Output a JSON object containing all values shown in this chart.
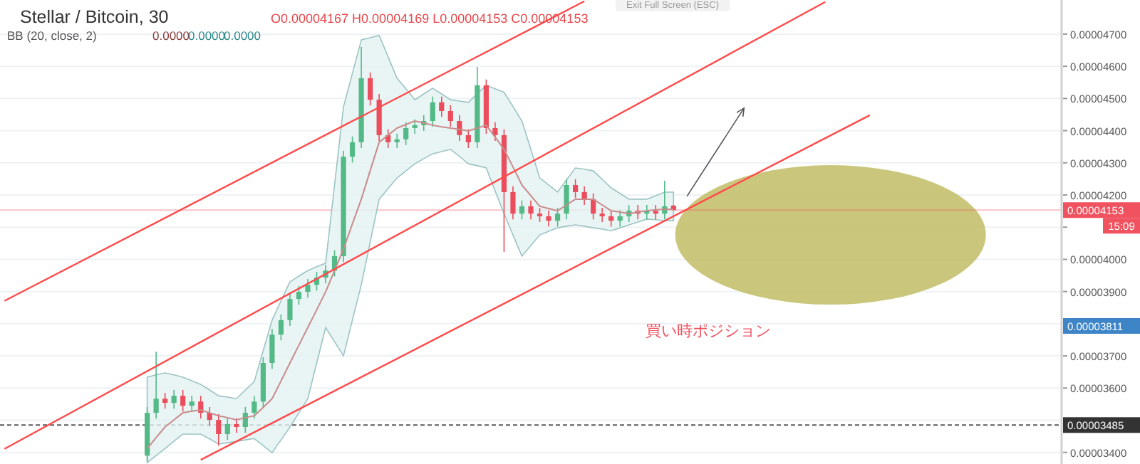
{
  "chart_data": {
    "type": "candlestick",
    "title": "Stellar / Bitcoin, 30",
    "subtitle": "BB (20, close, 2)",
    "categories": [
      null,
      null,
      null,
      null,
      null,
      null,
      null,
      null,
      null,
      null,
      null,
      null,
      null,
      null,
      null,
      null,
      null,
      null,
      null,
      null,
      null,
      null,
      null,
      null,
      null,
      null,
      null,
      null,
      null,
      null,
      null,
      null,
      null,
      null,
      null,
      null,
      null,
      null,
      null,
      null,
      null,
      null,
      null,
      null,
      null,
      null,
      null,
      null,
      null,
      null,
      null,
      null,
      null,
      null,
      null,
      null,
      null,
      null,
      null,
      null,
      null,
      null,
      null,
      null,
      null,
      null,
      null,
      null,
      null,
      null,
      null,
      null,
      null,
      null,
      null,
      null,
      null,
      null,
      null,
      null,
      null,
      null,
      null,
      null,
      null,
      null,
      null,
      null,
      null,
      null,
      null,
      null,
      null,
      null,
      null,
      null,
      null,
      null,
      null,
      null,
      null,
      null,
      null,
      null,
      null,
      null,
      null,
      null,
      null,
      null,
      null,
      null,
      null,
      null,
      null,
      null,
      null,
      null,
      null
    ],
    "ohlc": [
      null,
      null,
      null,
      null,
      null,
      null,
      null,
      null,
      null,
      null,
      null,
      null,
      null,
      null,
      null,
      null,
      [
        3.39e-05,
        3.541e-05,
        3.372e-05,
        3.523e-05
      ],
      [
        3.523e-05,
        3.713e-05,
        3.505e-05,
        3.567e-05
      ],
      [
        3.567e-05,
        3.585e-05,
        3.536e-05,
        3.554e-05
      ],
      [
        3.554e-05,
        3.594e-05,
        3.536e-05,
        3.576e-05
      ],
      [
        3.576e-05,
        3.594e-05,
        3.527e-05,
        3.545e-05
      ],
      [
        3.545e-05,
        3.576e-05,
        3.527e-05,
        3.558e-05
      ],
      [
        3.558e-05,
        3.576e-05,
        3.505e-05,
        3.523e-05
      ],
      [
        3.523e-05,
        3.541e-05,
        3.483e-05,
        3.501e-05
      ],
      [
        3.501e-05,
        3.519e-05,
        3.421e-05,
        3.457e-05
      ],
      [
        3.457e-05,
        3.506e-05,
        3.439e-05,
        3.488e-05
      ],
      [
        3.488e-05,
        3.506e-05,
        3.461e-05,
        3.479e-05
      ],
      [
        3.479e-05,
        3.541e-05,
        3.461e-05,
        3.523e-05
      ],
      [
        3.523e-05,
        3.576e-05,
        3.505e-05,
        3.558e-05
      ],
      [
        3.558e-05,
        3.696e-05,
        3.54e-05,
        3.678e-05
      ],
      [
        3.678e-05,
        3.784e-05,
        3.66e-05,
        3.766e-05
      ],
      [
        3.766e-05,
        3.829e-05,
        3.748e-05,
        3.811e-05
      ],
      [
        3.811e-05,
        3.895e-05,
        3.793e-05,
        3.877e-05
      ],
      [
        3.877e-05,
        3.917e-05,
        3.859e-05,
        3.899e-05
      ],
      [
        3.899e-05,
        3.939e-05,
        3.881e-05,
        3.921e-05
      ],
      [
        3.921e-05,
        3.961e-05,
        3.903e-05,
        3.943e-05
      ],
      [
        3.943e-05,
        3.983e-05,
        3.925e-05,
        3.965e-05
      ],
      [
        3.965e-05,
        4.028e-05,
        3.947e-05,
        4.01e-05
      ],
      [
        4.01e-05,
        4.337e-05,
        3.992e-05,
        4.319e-05
      ],
      [
        4.319e-05,
        4.382e-05,
        4.301e-05,
        4.364e-05
      ],
      [
        4.364e-05,
        4.66e-05,
        4.346e-05,
        4.563e-05
      ],
      [
        4.563e-05,
        4.581e-05,
        4.478e-05,
        4.496e-05
      ],
      [
        4.496e-05,
        4.514e-05,
        4.368e-05,
        4.386e-05
      ],
      [
        4.386e-05,
        4.404e-05,
        4.346e-05,
        4.364e-05
      ],
      [
        4.364e-05,
        4.391e-05,
        4.346e-05,
        4.373e-05
      ],
      [
        4.373e-05,
        4.426e-05,
        4.355e-05,
        4.408e-05
      ],
      [
        4.408e-05,
        4.435e-05,
        4.39e-05,
        4.417e-05
      ],
      [
        4.417e-05,
        4.448e-05,
        4.399e-05,
        4.43e-05
      ],
      [
        4.43e-05,
        4.506e-05,
        4.412e-05,
        4.488e-05
      ],
      [
        4.488e-05,
        4.506e-05,
        4.443e-05,
        4.461e-05
      ],
      [
        4.461e-05,
        4.479e-05,
        4.412e-05,
        4.43e-05
      ],
      [
        4.43e-05,
        4.448e-05,
        4.368e-05,
        4.386e-05
      ],
      [
        4.386e-05,
        4.404e-05,
        4.346e-05,
        4.364e-05
      ],
      [
        4.364e-05,
        4.598e-05,
        4.346e-05,
        4.541e-05
      ],
      [
        4.541e-05,
        4.559e-05,
        4.39e-05,
        4.408e-05
      ],
      [
        4.408e-05,
        4.426e-05,
        4.368e-05,
        4.386e-05
      ],
      [
        4.386e-05,
        4.404e-05,
        4.023e-05,
        4.209e-05
      ],
      [
        4.209e-05,
        4.227e-05,
        4.124e-05,
        4.142e-05
      ],
      [
        4.142e-05,
        4.183e-05,
        4.124e-05,
        4.165e-05
      ],
      [
        4.165e-05,
        4.183e-05,
        4.124e-05,
        4.142e-05
      ],
      [
        4.142e-05,
        4.16e-05,
        4.116e-05,
        4.134e-05
      ],
      [
        4.134e-05,
        4.152e-05,
        4.102e-05,
        4.12e-05
      ],
      [
        4.12e-05,
        4.16e-05,
        4.102e-05,
        4.142e-05
      ],
      [
        4.142e-05,
        4.249e-05,
        4.124e-05,
        4.231e-05
      ],
      [
        4.231e-05,
        4.249e-05,
        4.191e-05,
        4.209e-05
      ],
      [
        4.209e-05,
        4.227e-05,
        4.169e-05,
        4.187e-05
      ],
      [
        4.187e-05,
        4.205e-05,
        4.124e-05,
        4.142e-05
      ],
      [
        4.142e-05,
        4.16e-05,
        4.116e-05,
        4.134e-05
      ],
      [
        4.134e-05,
        4.152e-05,
        4.102e-05,
        4.12e-05
      ],
      [
        4.12e-05,
        4.152e-05,
        4.102e-05,
        4.134e-05
      ],
      [
        4.134e-05,
        4.169e-05,
        4.116e-05,
        4.151e-05
      ],
      [
        4.151e-05,
        4.169e-05,
        4.124e-05,
        4.142e-05
      ],
      [
        4.142e-05,
        4.169e-05,
        4.124e-05,
        4.151e-05
      ],
      [
        4.151e-05,
        4.169e-05,
        4.124e-05,
        4.142e-05
      ],
      [
        4.142e-05,
        4.244e-05,
        4.124e-05,
        4.165e-05
      ],
      [
        4.167e-05,
        4.169e-05,
        4.153e-05,
        4.153e-05
      ],
      null,
      null,
      null,
      null,
      null,
      null,
      null,
      null,
      null,
      null,
      null,
      null,
      null,
      null,
      null,
      null,
      null,
      null,
      null,
      null,
      null,
      null,
      null,
      null,
      null,
      null,
      null,
      null,
      null,
      null,
      null,
      null,
      null,
      null,
      null,
      null,
      null,
      null,
      null,
      null,
      null,
      null,
      null
    ],
    "series": [
      {
        "type": "line",
        "color": "#c98b8b",
        "values": [
          null,
          null,
          null,
          null,
          null,
          null,
          null,
          null,
          null,
          null,
          null,
          null,
          null,
          null,
          null,
          null,
          3.412e-05,
          3.446e-05,
          3.479e-05,
          3.501e-05,
          3.523e-05,
          3.528e-05,
          3.532e-05,
          3.523e-05,
          3.514e-05,
          3.508e-05,
          3.501e-05,
          3.508e-05,
          3.514e-05,
          3.54e-05,
          3.567e-05,
          3.622e-05,
          3.678e-05,
          3.733e-05,
          3.788e-05,
          3.843e-05,
          3.899e-05,
          3.965e-05,
          4.032e-05,
          4.11e-05,
          4.187e-05,
          4.276e-05,
          4.364e-05,
          4.386e-05,
          4.408e-05,
          4.419e-05,
          4.43e-05,
          4.424e-05,
          4.417e-05,
          4.412e-05,
          4.408e-05,
          4.404e-05,
          4.399e-05,
          4.408e-05,
          4.417e-05,
          4.38e-05,
          4.342e-05,
          4.287e-05,
          4.231e-05,
          4.198e-05,
          4.165e-05,
          4.158e-05,
          4.151e-05,
          4.169e-05,
          4.187e-05,
          4.187e-05,
          4.187e-05,
          4.169e-05,
          4.151e-05,
          4.147e-05,
          4.142e-05,
          4.147e-05,
          4.151e-05,
          4.154e-05,
          4.156e-05,
          4.155e-05,
          null,
          null,
          null,
          null,
          null,
          null,
          null,
          null,
          null,
          null,
          null,
          null,
          null,
          null,
          null,
          null,
          null,
          null,
          null,
          null,
          null,
          null,
          null,
          null,
          null,
          null,
          null,
          null,
          null,
          null,
          null,
          null,
          null,
          null,
          null,
          null,
          null,
          null,
          null,
          null,
          null,
          null,
          null
        ],
        "upper": [
          null,
          null,
          null,
          null,
          null,
          null,
          null,
          null,
          null,
          null,
          null,
          null,
          null,
          null,
          null,
          null,
          3.634e-05,
          3.641e-05,
          3.647e-05,
          3.641e-05,
          3.634e-05,
          3.623e-05,
          3.611e-05,
          3.594e-05,
          3.576e-05,
          3.572e-05,
          3.567e-05,
          3.594e-05,
          3.62e-05,
          3.716e-05,
          3.811e-05,
          3.871e-05,
          3.93e-05,
          3.948e-05,
          3.965e-05,
          3.977e-05,
          3.988e-05,
          4.231e-05,
          4.474e-05,
          4.578e-05,
          4.682e-05,
          4.689e-05,
          4.696e-05,
          4.63e-05,
          4.563e-05,
          4.53e-05,
          4.496e-05,
          4.514e-05,
          4.532e-05,
          4.514e-05,
          4.496e-05,
          4.492e-05,
          4.488e-05,
          4.515e-05,
          4.541e-05,
          4.53e-05,
          4.519e-05,
          4.475e-05,
          4.43e-05,
          4.342e-05,
          4.253e-05,
          4.231e-05,
          4.209e-05,
          4.247e-05,
          4.284e-05,
          4.28e-05,
          4.275e-05,
          4.249e-05,
          4.222e-05,
          4.205e-05,
          4.187e-05,
          4.187e-05,
          4.187e-05,
          4.198e-05,
          4.209e-05,
          4.209e-05,
          null,
          null,
          null,
          null,
          null,
          null,
          null,
          null,
          null,
          null,
          null,
          null,
          null,
          null,
          null,
          null,
          null,
          null,
          null,
          null,
          null,
          null,
          null,
          null,
          null,
          null,
          null,
          null,
          null,
          null,
          null,
          null,
          null,
          null,
          null,
          null,
          null,
          null,
          null,
          null,
          null,
          null,
          null
        ],
        "lower": [
          null,
          null,
          null,
          null,
          null,
          null,
          null,
          null,
          null,
          null,
          null,
          null,
          null,
          null,
          null,
          null,
          3.368e-05,
          3.39e-05,
          3.412e-05,
          3.435e-05,
          3.457e-05,
          3.457e-05,
          3.457e-05,
          3.442e-05,
          3.426e-05,
          3.43e-05,
          3.434e-05,
          3.439e-05,
          3.443e-05,
          3.421e-05,
          3.399e-05,
          3.439e-05,
          3.479e-05,
          3.523e-05,
          3.567e-05,
          3.678e-05,
          3.788e-05,
          3.744e-05,
          3.7e-05,
          3.811e-05,
          3.921e-05,
          4.054e-05,
          4.187e-05,
          4.22e-05,
          4.253e-05,
          4.275e-05,
          4.297e-05,
          4.313e-05,
          4.328e-05,
          4.335e-05,
          4.342e-05,
          4.32e-05,
          4.297e-05,
          4.291e-05,
          4.284e-05,
          4.213e-05,
          4.142e-05,
          4.076e-05,
          4.01e-05,
          4.043e-05,
          4.076e-05,
          4.087e-05,
          4.098e-05,
          4.103e-05,
          4.107e-05,
          4.103e-05,
          4.098e-05,
          4.094e-05,
          4.089e-05,
          4.098e-05,
          4.107e-05,
          4.116e-05,
          4.125e-05,
          4.123e-05,
          4.12e-05,
          4.12e-05,
          null,
          null,
          null,
          null,
          null,
          null,
          null,
          null,
          null,
          null,
          null,
          null,
          null,
          null,
          null,
          null,
          null,
          null,
          null,
          null,
          null,
          null,
          null,
          null,
          null,
          null,
          null,
          null,
          null,
          null,
          null,
          null,
          null,
          null,
          null,
          null,
          null,
          null,
          null,
          null,
          null,
          null,
          null
        ]
      },
      {
        "type": "line",
        "color": "#ff4a4a",
        "values": [
          3.871e-05,
          null,
          null,
          null,
          null,
          null,
          null,
          null,
          null,
          null,
          null,
          null,
          null,
          null,
          null,
          null,
          null,
          null,
          null,
          null,
          null,
          null,
          null,
          null,
          null,
          null,
          null,
          null,
          null,
          null,
          null,
          null,
          null,
          null,
          null,
          null,
          null,
          null,
          null,
          null,
          null,
          null,
          null,
          null,
          null,
          null,
          null,
          null,
          null,
          null,
          null,
          null,
          null,
          null,
          null,
          null,
          null,
          null,
          null,
          null,
          null,
          null,
          null,
          null,
          null,
          4.802e-05,
          null,
          null,
          null,
          null,
          null,
          null,
          null,
          null,
          null,
          null,
          null,
          null,
          null,
          null,
          null,
          null,
          null,
          null,
          null,
          null,
          null,
          null,
          null,
          null,
          null,
          null,
          null,
          null,
          null,
          null,
          null,
          null,
          null,
          null,
          null,
          null,
          null,
          null,
          null,
          null,
          null,
          null,
          null,
          null,
          null,
          null,
          null,
          null,
          null,
          null,
          null,
          null,
          null
        ]
      },
      {
        "type": "line",
        "color": "#ff4a4a",
        "values": [
          3.411e-05,
          null,
          null,
          null,
          null,
          null,
          null,
          null,
          null,
          null,
          null,
          null,
          null,
          null,
          null,
          null,
          null,
          null,
          null,
          null,
          null,
          null,
          null,
          null,
          null,
          null,
          null,
          null,
          null,
          null,
          null,
          null,
          null,
          null,
          null,
          null,
          null,
          null,
          null,
          null,
          null,
          null,
          null,
          null,
          null,
          null,
          null,
          null,
          null,
          null,
          null,
          null,
          null,
          null,
          null,
          null,
          null,
          null,
          null,
          null,
          null,
          null,
          null,
          null,
          null,
          null,
          null,
          null,
          null,
          null,
          null,
          null,
          null,
          null,
          null,
          null,
          null,
          null,
          null,
          null,
          null,
          null,
          null,
          null,
          null,
          null,
          null,
          null,
          null,
          null,
          null,
          null,
          4.8e-05,
          null,
          null,
          null,
          null,
          null,
          null,
          null,
          null,
          null,
          null,
          null,
          null,
          null,
          null,
          null,
          null,
          null,
          null,
          null,
          null,
          null,
          null,
          null,
          null,
          null,
          null
        ]
      },
      {
        "type": "line",
        "color": "#ff4a4a",
        "values": [
          null,
          null,
          null,
          null,
          null,
          null,
          null,
          null,
          null,
          null,
          null,
          null,
          null,
          null,
          null,
          null,
          null,
          null,
          null,
          null,
          null,
          null,
          3.377e-05,
          null,
          null,
          null,
          null,
          null,
          null,
          null,
          null,
          null,
          null,
          null,
          null,
          null,
          null,
          null,
          null,
          null,
          null,
          null,
          null,
          null,
          null,
          null,
          null,
          null,
          null,
          null,
          null,
          null,
          null,
          null,
          null,
          null,
          null,
          null,
          null,
          null,
          null,
          null,
          null,
          null,
          null,
          null,
          null,
          null,
          null,
          null,
          null,
          null,
          null,
          null,
          null,
          null,
          null,
          null,
          null,
          null,
          null,
          null,
          null,
          null,
          null,
          null,
          null,
          null,
          null,
          null,
          null,
          null,
          null,
          null,
          null,
          null,
          null,
          4.448e-05,
          null,
          null,
          null,
          null,
          null,
          null,
          null,
          null,
          null,
          null,
          null,
          null,
          null,
          null,
          null,
          null,
          null,
          null,
          null,
          null,
          null
        ]
      }
    ],
    "ylim": [
      3.364e-05,
      4.806e-05
    ],
    "yticks": [
      {
        "value": 3.4e-05,
        "label": "0.00003400"
      },
      {
        "value": 3.5e-05,
        "label": null
      },
      {
        "value": 3.6e-05,
        "label": "0.00003600"
      },
      {
        "value": 3.7e-05,
        "label": "0.00003700"
      },
      {
        "value": 3.8e-05,
        "label": null
      },
      {
        "value": 3.9e-05,
        "label": "0.00003900"
      },
      {
        "value": 4e-05,
        "label": "0.00004000"
      },
      {
        "value": 4.1e-05,
        "label": null
      },
      {
        "value": 4.2e-05,
        "label": "0.00004200"
      },
      {
        "value": 4.3e-05,
        "label": "0.00004300"
      },
      {
        "value": 4.4e-05,
        "label": "0.00004400"
      },
      {
        "value": 4.5e-05,
        "label": "0.00004500"
      },
      {
        "value": 4.6e-05,
        "label": "0.00004600"
      },
      {
        "value": 4.7e-05,
        "label": "0.00004700"
      }
    ],
    "tick_labels": "y",
    "grid": "y",
    "ref_lines": [
      {
        "axis": "y",
        "value": 4.153e-05,
        "label": "0.00004153",
        "color": "#f0525f",
        "line_style": "solid"
      },
      {
        "axis": "y",
        "value": 3.485e-05,
        "label": "0.00003485",
        "color": "#333333",
        "line_style": "dotted"
      }
    ],
    "annotations": [
      "O0.00004167 H0.00004169 L0.00004153 C0.00004153",
      "0.0000",
      "0.0000",
      "0.0000",
      "Exit Full Screen (ESC)",
      "15:09",
      "買い時ポジション",
      "0.00003811"
    ]
  }
}
